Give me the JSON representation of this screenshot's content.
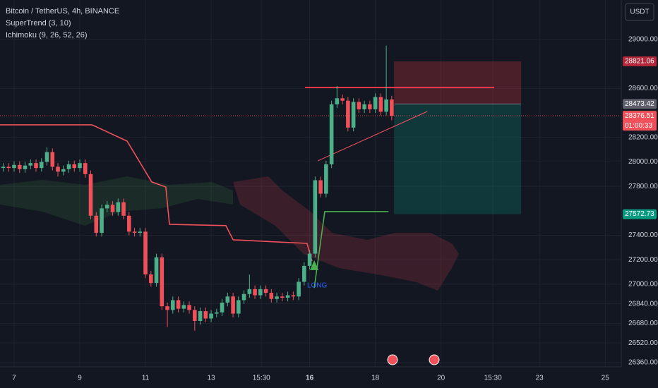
{
  "chart_data": {
    "type": "candlestick",
    "title": "Bitcoin / TetherUS, 4h, BINANCE",
    "indicators": [
      "SuperTrend (3, 10)",
      "Ichimoku (9, 26, 52, 26)"
    ],
    "currency": "USDT",
    "x": [
      6.667,
      6.833,
      7,
      7.167,
      7.333,
      7.5,
      7.667,
      7.833,
      8,
      8.167,
      8.333,
      8.5,
      8.667,
      8.833,
      9,
      9.167,
      9.333,
      9.5,
      9.667,
      9.833,
      10,
      10.167,
      10.333,
      10.5,
      10.667,
      10.833,
      11,
      11.167,
      11.333,
      11.5,
      11.667,
      11.833,
      12,
      12.167,
      12.333,
      12.5,
      12.667,
      12.833,
      13,
      13.167,
      13.333,
      13.5,
      13.667,
      13.833,
      14,
      14.167,
      14.333,
      14.5,
      14.667,
      14.833,
      15,
      15.167,
      15.333,
      15.5,
      15.667,
      15.833,
      16,
      16.167,
      16.333,
      16.5,
      16.667,
      16.833,
      17,
      17.167,
      17.333,
      17.5,
      17.667,
      17.833,
      18,
      18.167,
      18.333,
      18.5
    ],
    "open": [
      27950,
      27960,
      27950,
      27975,
      27940,
      27970,
      27990,
      27950,
      28000,
      28080,
      27960,
      27920,
      27940,
      27980,
      27950,
      27990,
      27900,
      27560,
      27420,
      27620,
      27650,
      27590,
      27670,
      27560,
      27430,
      27420,
      27430,
      27080,
      27010,
      27220,
      26820,
      26790,
      26870,
      26800,
      26830,
      26790,
      26700,
      26780,
      26720,
      26760,
      26770,
      26850,
      26900,
      26760,
      26870,
      26920,
      26960,
      26910,
      26960,
      26930,
      26880,
      26900,
      26890,
      26910,
      26900,
      27020,
      27150,
      27250,
      27850,
      27740,
      27980,
      28470,
      28520,
      28500,
      28280,
      28490,
      28430,
      28470,
      28430,
      28530,
      28410,
      28510
    ],
    "high": [
      27990,
      27990,
      28005,
      28005,
      28000,
      28020,
      28020,
      28030,
      28120,
      28110,
      27990,
      27970,
      28010,
      28010,
      28020,
      28020,
      27930,
      27590,
      27650,
      27680,
      27680,
      27700,
      27700,
      27590,
      27460,
      27460,
      27460,
      27110,
      27250,
      27250,
      26850,
      26900,
      26900,
      26860,
      26860,
      26820,
      26810,
      26810,
      26790,
      26800,
      26880,
      26930,
      26930,
      26900,
      26950,
      27080,
      26990,
      26990,
      26990,
      26960,
      26930,
      26930,
      26940,
      26940,
      27050,
      27180,
      27280,
      27880,
      27880,
      28010,
      28500,
      28620,
      28550,
      28530,
      28520,
      28520,
      28500,
      28500,
      28560,
      28560,
      28950,
      28540
    ],
    "low": [
      27920,
      27920,
      27920,
      27910,
      27910,
      27940,
      27920,
      27920,
      27970,
      27930,
      27880,
      27890,
      27910,
      27920,
      27920,
      27870,
      27530,
      27390,
      27390,
      27590,
      27560,
      27560,
      27530,
      27400,
      27390,
      27390,
      27050,
      26980,
      26980,
      26790,
      26650,
      26760,
      26770,
      26770,
      26760,
      26620,
      26670,
      26690,
      26690,
      26730,
      26740,
      26820,
      26730,
      26730,
      26840,
      26890,
      26880,
      26880,
      26900,
      26850,
      26850,
      26860,
      26860,
      26870,
      26870,
      26990,
      27120,
      27220,
      27710,
      27710,
      27950,
      28440,
      28470,
      28250,
      28250,
      28400,
      28400,
      28400,
      28400,
      28380,
      28380,
      28340
    ],
    "close": [
      27960,
      27950,
      27975,
      27940,
      27970,
      27990,
      27950,
      28000,
      28080,
      27960,
      27920,
      27940,
      27980,
      27950,
      27990,
      27900,
      27560,
      27420,
      27620,
      27650,
      27590,
      27670,
      27560,
      27430,
      27420,
      27430,
      27080,
      27010,
      27220,
      26820,
      26790,
      26870,
      26800,
      26830,
      26790,
      26700,
      26780,
      26720,
      26760,
      26770,
      26850,
      26900,
      26760,
      26870,
      26920,
      26960,
      26910,
      26960,
      26930,
      26880,
      26900,
      26890,
      26910,
      26900,
      27020,
      27150,
      27250,
      27850,
      27740,
      27980,
      28470,
      28520,
      28500,
      28280,
      28490,
      28430,
      28470,
      28430,
      28530,
      28410,
      28510,
      28376.51
    ],
    "up_color": "#4caf8a",
    "down_color": "#f0505a",
    "supertrend": [
      {
        "color": "#f0505a",
        "x": [
          6.57,
          9.37,
          10.44,
          11.19,
          11.62,
          11.73,
          13.45,
          13.67,
          15.92,
          16.07
        ],
        "values": [
          28303,
          28303,
          28170,
          27836,
          27795,
          27490,
          27479,
          27363,
          27334,
          27190
        ]
      },
      {
        "color": "#4caf50",
        "x": [
          16.14,
          16.46,
          18.4
        ],
        "values": [
          26970,
          27594,
          27594
        ]
      }
    ],
    "drawings": [
      {
        "color": "#f23645",
        "x": [
          15.86,
          21.62
        ],
        "values": [
          28608,
          28608
        ]
      },
      {
        "color": "#f7525f",
        "x": [
          16.25,
          19.58
        ],
        "values": [
          28009,
          28412
        ]
      }
    ],
    "position": {
      "x": [
        18.57,
        22.44
      ],
      "stop": 28821.06,
      "entry": 28473.42,
      "target": 27572.73
    },
    "last_price": 28376.51,
    "countdown": "01:00:33",
    "signal": {
      "label": "LONG",
      "x": 16.14,
      "value": 27150
    },
    "xlim": [
      6.57,
      25.49
    ],
    "ylim": [
      26325,
      29323
    ],
    "xticks": [
      7,
      9,
      11,
      13,
      {
        "value": 14.53,
        "label": "15:30"
      },
      16,
      18,
      20,
      {
        "value": 21.58,
        "label": "15:30"
      },
      23,
      25
    ],
    "yticks": [
      {
        "value": 29000,
        "label": "29000.00"
      },
      {
        "value": 28600,
        "label": "28600.00"
      },
      {
        "value": 28200,
        "label": "28200.00"
      },
      {
        "value": 28000,
        "label": "28000.00"
      },
      {
        "value": 27800,
        "label": "27800.00"
      },
      {
        "value": 27400,
        "label": "27400.00"
      },
      {
        "value": 27200,
        "label": "27200.00"
      },
      {
        "value": 27000,
        "label": "27000.00"
      },
      {
        "value": 26840,
        "label": "26840.00"
      },
      {
        "value": 26680,
        "label": "26680.00"
      },
      {
        "value": 26520,
        "label": "26520.00"
      },
      {
        "value": 26360,
        "label": "26360.00"
      }
    ],
    "grid": true
  }
}
